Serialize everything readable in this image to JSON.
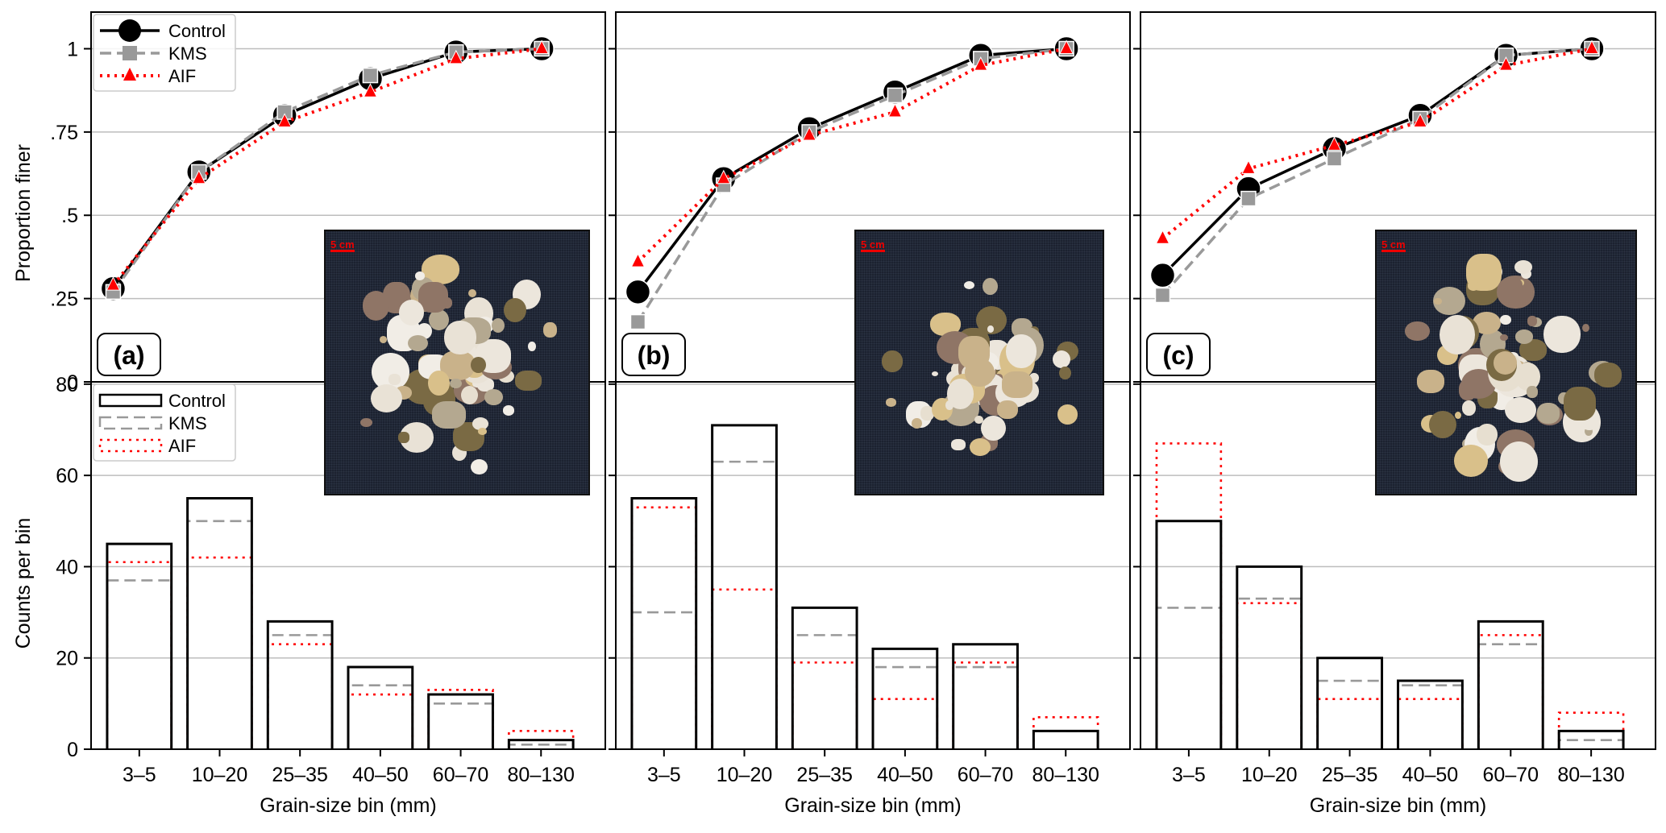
{
  "figure": {
    "shared_xlabel": "Grain-size bin (mm)",
    "top_ylabel": "Proportion finer",
    "bottom_ylabel": "Counts per bin",
    "photo_scale_label": "5 cm"
  },
  "legend_top": [
    {
      "name": "Control",
      "color": "#000000",
      "style": "solid",
      "marker": "circle"
    },
    {
      "name": "KMS",
      "color": "#999999",
      "style": "dashed",
      "marker": "square"
    },
    {
      "name": "AIF",
      "color": "#ff0000",
      "style": "dotted",
      "marker": "triangle"
    }
  ],
  "legend_bottom": [
    {
      "name": "Control",
      "color": "#000000",
      "style": "solid"
    },
    {
      "name": "KMS",
      "color": "#999999",
      "style": "dashed"
    },
    {
      "name": "AIF",
      "color": "#ff0000",
      "style": "dotted"
    }
  ],
  "chart_data": [
    {
      "panel": "(a)",
      "type": "line",
      "title": "",
      "xlabel": "",
      "ylabel": "Proportion finer",
      "categories": [
        "3–5",
        "10–20",
        "25–35",
        "40–50",
        "60–70",
        "80–130"
      ],
      "yticks": [
        0,
        0.25,
        0.5,
        0.75,
        1
      ],
      "ytick_labels": [
        "0",
        ".25",
        ".5",
        ".75",
        "1"
      ],
      "ylim": [
        0,
        1.11
      ],
      "grid": "y",
      "legend": "top-left",
      "series": [
        {
          "name": "Control",
          "values": [
            0.28,
            0.63,
            0.8,
            0.91,
            0.99,
            1.0
          ]
        },
        {
          "name": "KMS",
          "values": [
            0.27,
            0.63,
            0.81,
            0.92,
            0.99,
            1.0
          ]
        },
        {
          "name": "AIF",
          "values": [
            0.29,
            0.61,
            0.78,
            0.87,
            0.97,
            1.0
          ]
        }
      ]
    },
    {
      "panel": "(b)",
      "type": "line",
      "title": "",
      "xlabel": "",
      "ylabel": "",
      "categories": [
        "3–5",
        "10–20",
        "25–35",
        "40–50",
        "60–70",
        "80–130"
      ],
      "yticks": [
        0,
        0.25,
        0.5,
        0.75,
        1
      ],
      "ylim": [
        0,
        1.11
      ],
      "grid": "y",
      "series": [
        {
          "name": "Control",
          "values": [
            0.27,
            0.61,
            0.76,
            0.87,
            0.98,
            1.0
          ]
        },
        {
          "name": "KMS",
          "values": [
            0.18,
            0.59,
            0.75,
            0.86,
            0.97,
            1.0
          ]
        },
        {
          "name": "AIF",
          "values": [
            0.36,
            0.61,
            0.74,
            0.81,
            0.95,
            1.0
          ]
        }
      ]
    },
    {
      "panel": "(c)",
      "type": "line",
      "title": "",
      "xlabel": "",
      "ylabel": "",
      "categories": [
        "3–5",
        "10–20",
        "25–35",
        "40–50",
        "60–70",
        "80–130"
      ],
      "yticks": [
        0,
        0.25,
        0.5,
        0.75,
        1
      ],
      "ylim": [
        0,
        1.11
      ],
      "grid": "y",
      "series": [
        {
          "name": "Control",
          "values": [
            0.32,
            0.58,
            0.7,
            0.8,
            0.98,
            1.0
          ]
        },
        {
          "name": "KMS",
          "values": [
            0.26,
            0.55,
            0.67,
            0.79,
            0.98,
            1.0
          ]
        },
        {
          "name": "AIF",
          "values": [
            0.43,
            0.64,
            0.71,
            0.78,
            0.95,
            1.0
          ]
        }
      ]
    },
    {
      "panel": "(a)",
      "type": "bar",
      "title": "",
      "xlabel": "Grain-size bin (mm)",
      "ylabel": "Counts per bin",
      "categories": [
        "3–5",
        "10–20",
        "25–35",
        "40–50",
        "60–70",
        "80–130"
      ],
      "yticks": [
        0,
        20,
        40,
        60,
        80
      ],
      "ylim": [
        0,
        80.5
      ],
      "grid": "y",
      "legend": "top-left",
      "series": [
        {
          "name": "Control",
          "values": [
            45,
            55,
            28,
            18,
            12,
            2
          ]
        },
        {
          "name": "KMS",
          "values": [
            37,
            50,
            25,
            14,
            10,
            1
          ]
        },
        {
          "name": "AIF",
          "values": [
            41,
            42,
            23,
            12,
            13,
            4
          ]
        }
      ]
    },
    {
      "panel": "(b)",
      "type": "bar",
      "title": "",
      "xlabel": "Grain-size bin (mm)",
      "ylabel": "",
      "categories": [
        "3–5",
        "10–20",
        "25–35",
        "40–50",
        "60–70",
        "80–130"
      ],
      "yticks": [
        0,
        20,
        40,
        60,
        80
      ],
      "ylim": [
        0,
        80.5
      ],
      "grid": "y",
      "series": [
        {
          "name": "Control",
          "values": [
            55,
            71,
            31,
            22,
            23,
            4
          ]
        },
        {
          "name": "KMS",
          "values": [
            30,
            63,
            25,
            18,
            18,
            4
          ]
        },
        {
          "name": "AIF",
          "values": [
            53,
            35,
            19,
            11,
            19,
            7
          ]
        }
      ]
    },
    {
      "panel": "(c)",
      "type": "bar",
      "title": "",
      "xlabel": "Grain-size bin (mm)",
      "ylabel": "",
      "categories": [
        "3–5",
        "10–20",
        "25–35",
        "40–50",
        "60–70",
        "80–130"
      ],
      "yticks": [
        0,
        20,
        40,
        60,
        80
      ],
      "ylim": [
        0,
        80.5
      ],
      "grid": "y",
      "series": [
        {
          "name": "Control",
          "values": [
            50,
            40,
            20,
            15,
            28,
            4
          ]
        },
        {
          "name": "KMS",
          "values": [
            31,
            33,
            15,
            14,
            23,
            2
          ]
        },
        {
          "name": "AIF",
          "values": [
            67,
            32,
            11,
            11,
            25,
            8
          ]
        }
      ]
    }
  ]
}
